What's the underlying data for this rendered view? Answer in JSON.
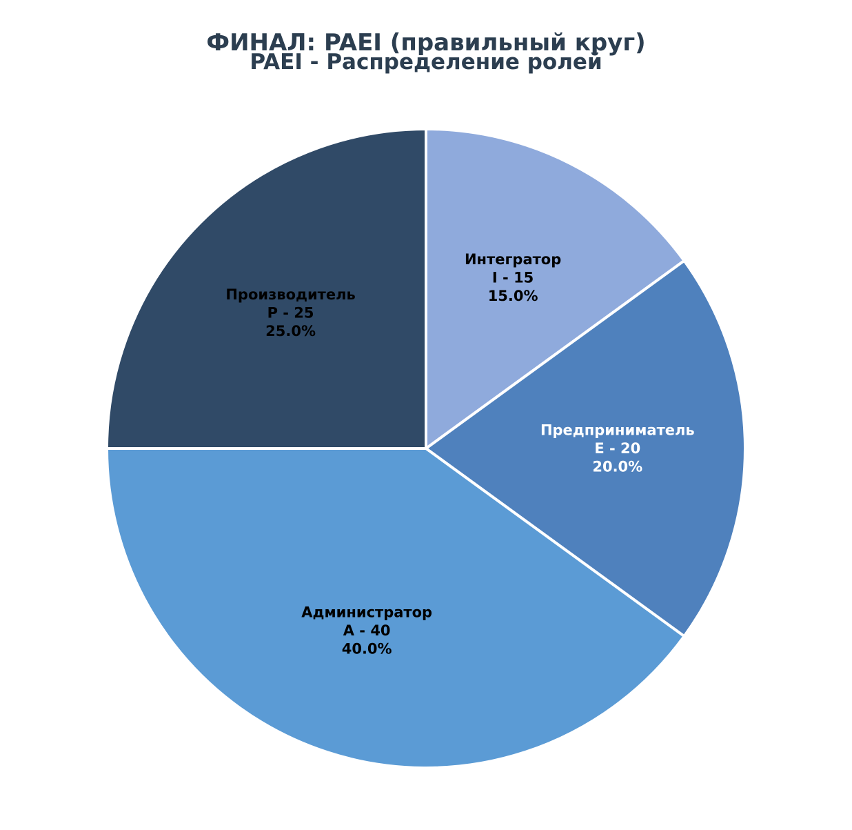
{
  "title": "ФИНАЛ: PAEI (правильный круг)",
  "chart_data": {
    "type": "pie",
    "title": "PAEI - Распределение ролей",
    "start_angle_deg": 90,
    "direction": "clockwise",
    "slices": [
      {
        "label": "Интегратор",
        "code": "I - 15",
        "value": 15,
        "percent": "15.0%",
        "color": "#8faadc",
        "text_color": "#000000"
      },
      {
        "label": "Предприниматель",
        "code": "E - 20",
        "value": 20,
        "percent": "20.0%",
        "color": "#4f81bd",
        "text_color": "#ffffff"
      },
      {
        "label": "Администратор",
        "code": "A - 40",
        "value": 40,
        "percent": "40.0%",
        "color": "#5b9bd5",
        "text_color": "#000000"
      },
      {
        "label": "Производитель",
        "code": "P - 25",
        "value": 25,
        "percent": "25.0%",
        "color": "#304a67",
        "text_color": "#000000"
      }
    ],
    "edge_color": "#ffffff"
  }
}
